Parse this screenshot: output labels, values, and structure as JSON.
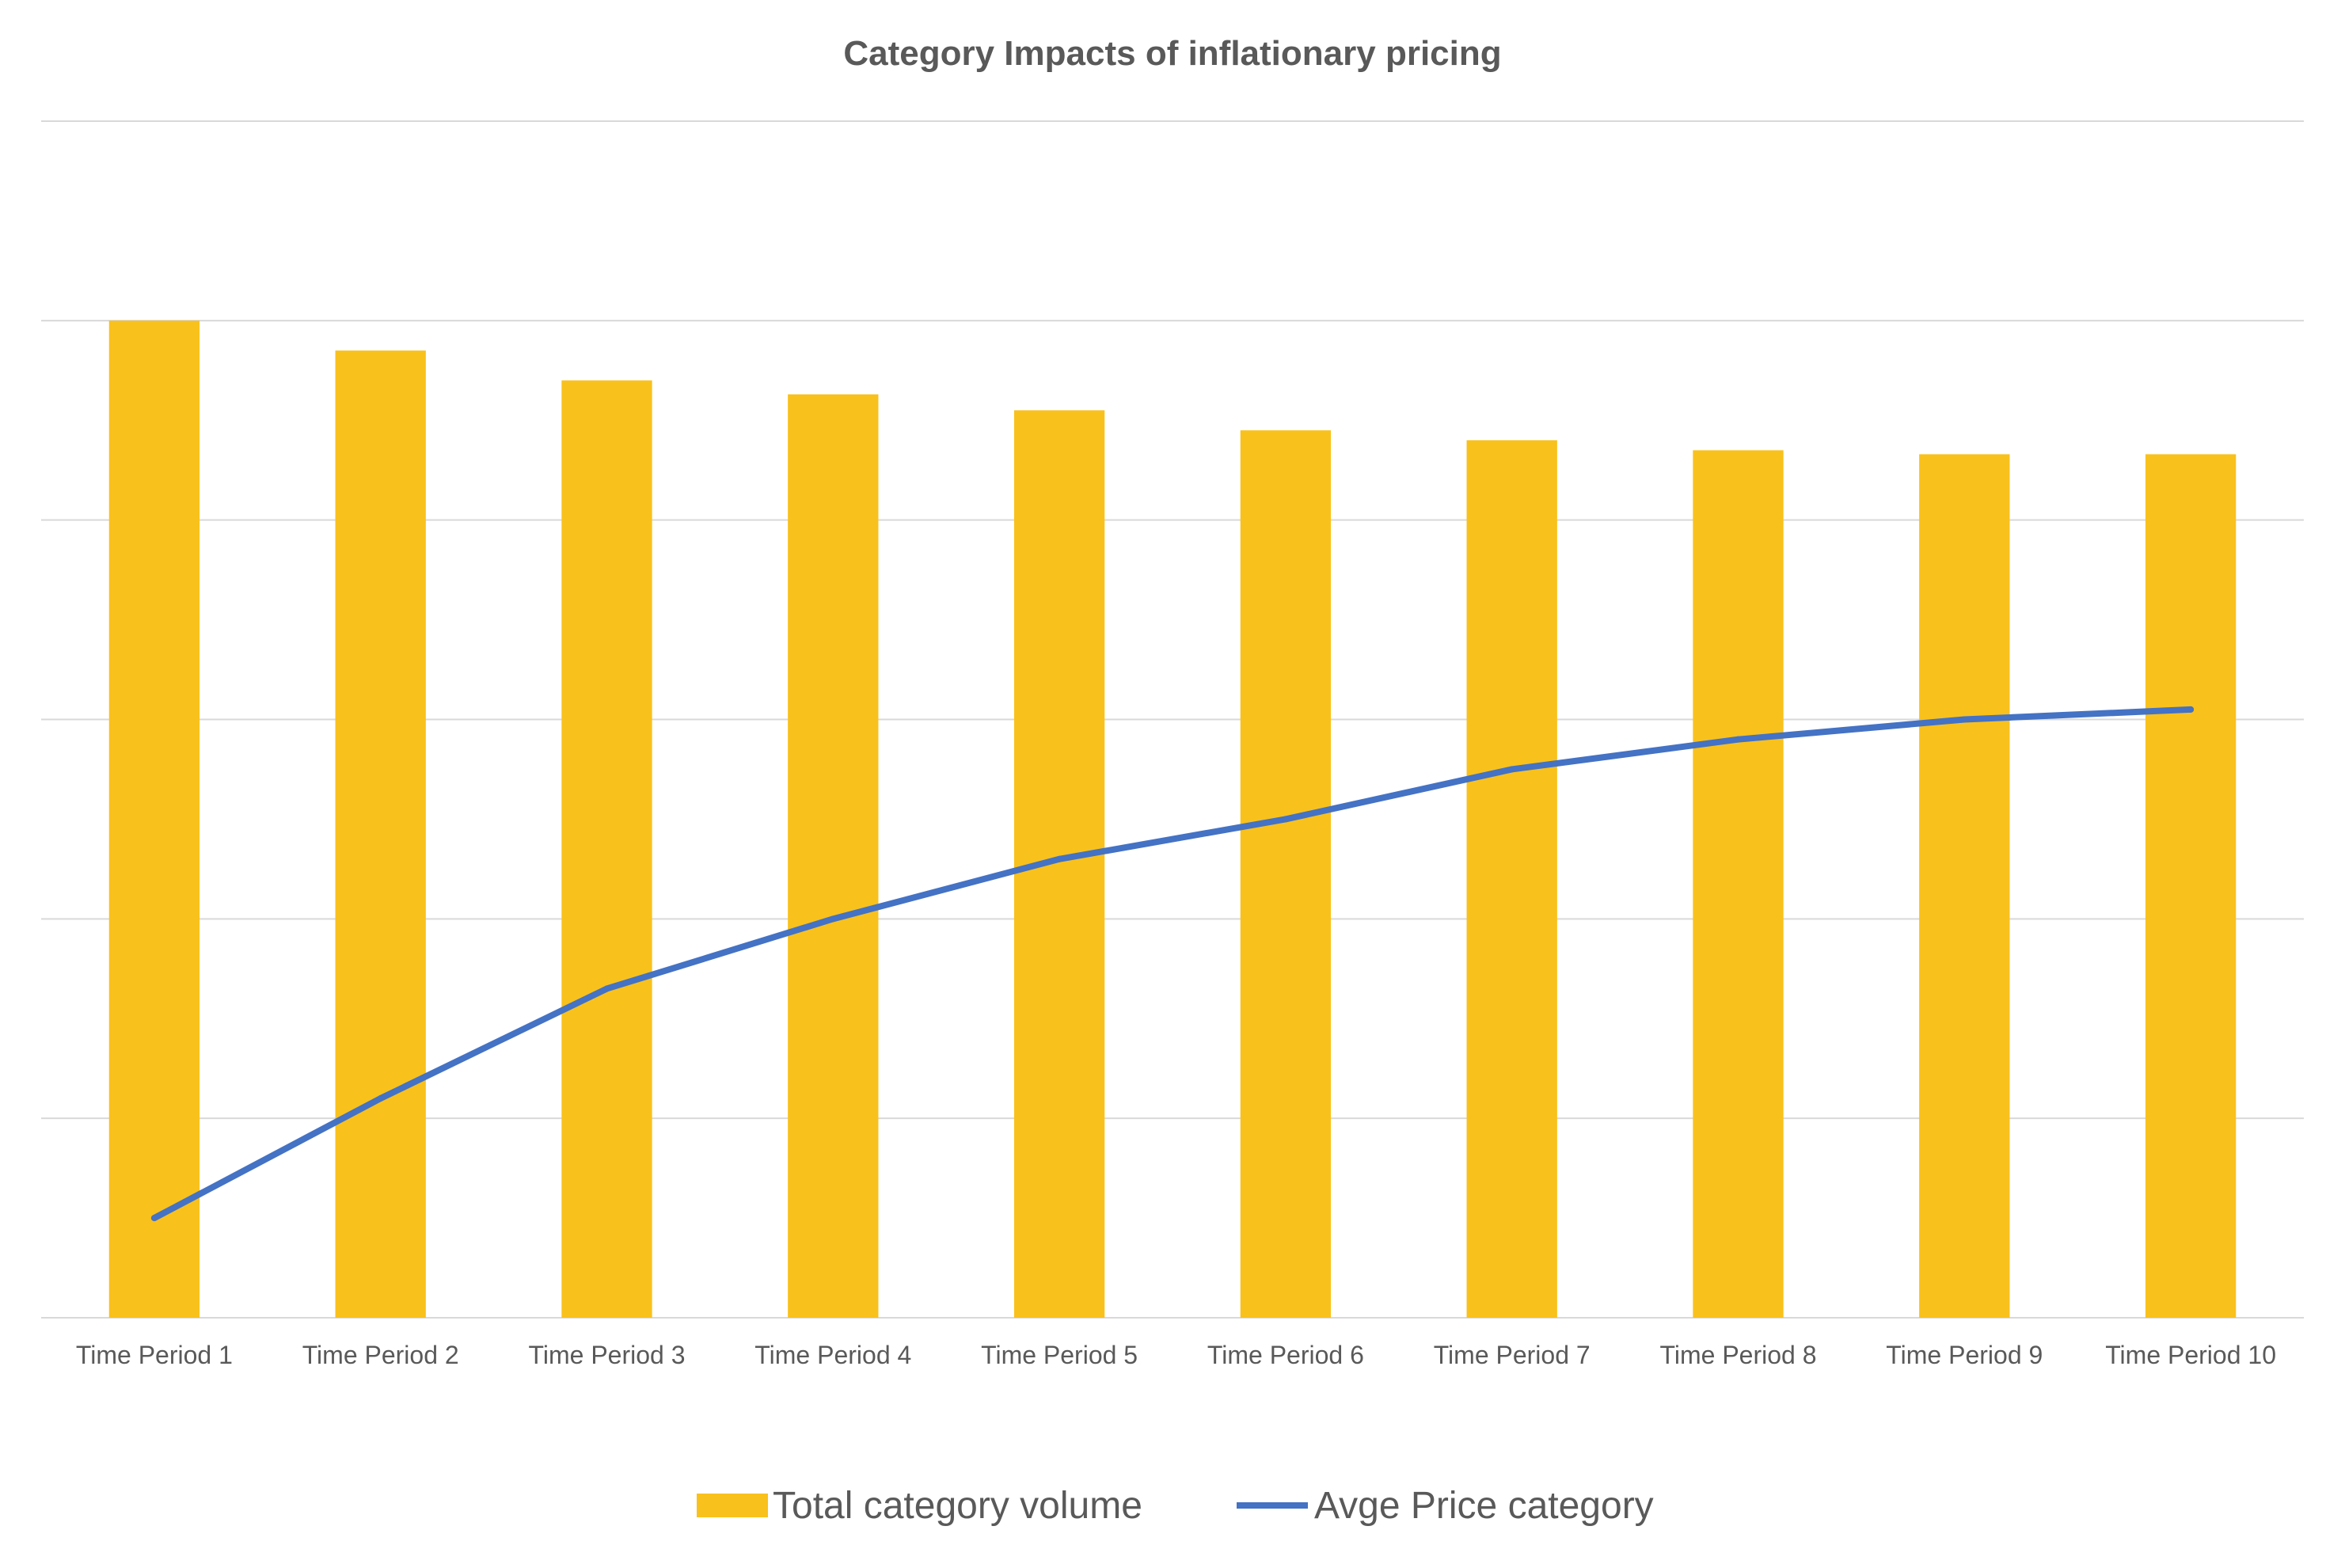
{
  "chart_data": {
    "type": "bar",
    "title": "Category Impacts of inflationary pricing",
    "xlabel": "",
    "ylabel": "",
    "categories": [
      "Time Period 1",
      "Time Period 2",
      "Time Period 3",
      "Time Period 4",
      "Time Period 5",
      "Time Period 6",
      "Time Period 7",
      "Time Period 8",
      "Time Period 9",
      "Time Period 10"
    ],
    "ylim": [
      0,
      6
    ],
    "y_ticks_shown": false,
    "grid": true,
    "legend_position": "bottom",
    "series": [
      {
        "name": "Total category volume",
        "type": "bar",
        "color": "#F9C11C",
        "values": [
          5.0,
          4.85,
          4.7,
          4.63,
          4.55,
          4.45,
          4.4,
          4.35,
          4.33,
          4.33
        ]
      },
      {
        "name": "Avge Price category",
        "type": "line",
        "color": "#4472C4",
        "values": [
          0.5,
          1.1,
          1.65,
          2.0,
          2.3,
          2.5,
          2.75,
          2.9,
          3.0,
          3.05
        ]
      }
    ]
  }
}
